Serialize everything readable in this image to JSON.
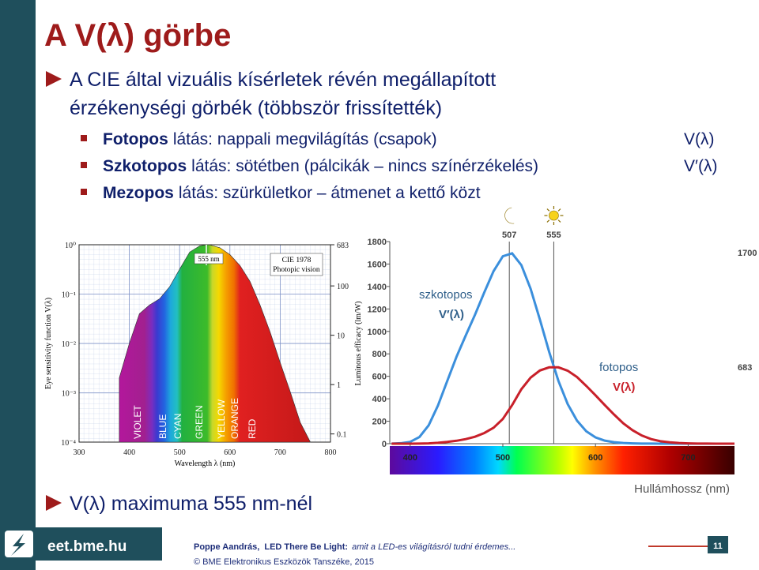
{
  "slide": {
    "title": "A V(λ) görbe",
    "bullet_lines": [
      "A CIE által vizuális kísérletek révén megállapított",
      "érzékenységi görbék (többször frissítették)"
    ],
    "subbullets": [
      {
        "term": "Fotopos",
        "text": "látás: nappali megvilágítás (csapok)",
        "symbol": "V(λ)"
      },
      {
        "term": "Szkotopos",
        "text": "látás: sötétben (pálcikák – nincs színérzékelés)",
        "symbol": "V′(λ)"
      },
      {
        "term": "Mezopos",
        "text": "látás: szürkületkor – átmenet a kettő közt"
      }
    ],
    "bottom_bullet": "V(λ) maximuma 555 nm-nél",
    "footer": {
      "site": "eet.bme.hu",
      "author": "Poppe Aandrás,",
      "course": "LED There Be Light:",
      "subtitle": "amit a LED-es világításról tudni érdemes...",
      "copyright": "© BME Elektronikus Eszközök Tanszéke, 2015",
      "page": "11"
    }
  },
  "chart_data": [
    {
      "type": "area",
      "x": [
        380,
        400,
        420,
        440,
        460,
        480,
        500,
        520,
        540,
        555,
        560,
        580,
        600,
        620,
        640,
        660,
        680,
        700,
        720,
        740,
        760
      ],
      "values": [
        0.002,
        0.01,
        0.04,
        0.06,
        0.08,
        0.14,
        0.32,
        0.71,
        0.95,
        1,
        0.99,
        0.87,
        0.63,
        0.38,
        0.18,
        0.06,
        0.017,
        0.0041,
        0.00105,
        0.00025,
        0.0001
      ],
      "xlim": [
        300,
        800
      ],
      "xticks": [
        300,
        400,
        500,
        600,
        700,
        800
      ],
      "ylim": [
        0.0001,
        1
      ],
      "log_y": true,
      "yticks": [
        {
          "value": 1,
          "label": "10⁰"
        },
        {
          "value": 0.1,
          "label": "10⁻¹"
        },
        {
          "value": 0.01,
          "label": "10⁻²"
        },
        {
          "value": 0.001,
          "label": "10⁻³"
        },
        {
          "value": 0.0001,
          "label": "10⁻⁴"
        }
      ],
      "y2lim": [
        0.0683,
        683
      ],
      "y2ticks": [
        683,
        100,
        10,
        1,
        0.1
      ],
      "xlabel": "Wavelength λ (nm)",
      "ylabel": "Eye sensitivity function V(λ)",
      "y2label": "Luminous efficacy (lm/W)",
      "grid": true,
      "peak_label": "555 nm",
      "note": [
        "CIE 1978",
        "Photopic vision"
      ],
      "bands": [
        "VIOLET",
        "BLUE",
        "CYAN",
        "GREEN",
        "YELLOW",
        "ORANGE",
        "RED"
      ]
    },
    {
      "type": "line",
      "x": [
        380,
        390,
        400,
        410,
        420,
        430,
        440,
        450,
        460,
        470,
        480,
        490,
        500,
        510,
        520,
        530,
        540,
        550,
        560,
        570,
        580,
        590,
        600,
        610,
        620,
        630,
        640,
        650,
        660,
        670,
        680,
        690,
        700,
        710,
        720,
        730,
        740,
        750
      ],
      "series": [
        {
          "name": "szkotopos",
          "label": "V′(λ)",
          "color": "#3b8fdc",
          "values": [
            1,
            4,
            16,
            59,
            164,
            340,
            558,
            774,
            964,
            1149,
            1348,
            1537,
            1669,
            1695,
            1590,
            1379,
            1105,
            818,
            559,
            353,
            206,
            111,
            56,
            27,
            13,
            6,
            3,
            1,
            1,
            0,
            0,
            0,
            0,
            0,
            0,
            0,
            0,
            0
          ]
        },
        {
          "name": "fotopos",
          "label": "V(λ)",
          "color": "#c8202a",
          "values": [
            0,
            0,
            0,
            1,
            3,
            8,
            16,
            26,
            41,
            62,
            95,
            142,
            220,
            343,
            485,
            588,
            652,
            680,
            680,
            650,
            594,
            515,
            431,
            344,
            260,
            181,
            120,
            73,
            41,
            22,
            12,
            6,
            3,
            1,
            1,
            0,
            0,
            0
          ]
        }
      ],
      "xlim": [
        378,
        750
      ],
      "xticks": [
        400,
        500,
        600,
        700
      ],
      "ylim": [
        0,
        1800
      ],
      "yticks": [
        0,
        200,
        400,
        600,
        800,
        1000,
        1200,
        1400,
        1600,
        1800
      ],
      "xlabel": "Hullámhossz (nm)",
      "markers": [
        507,
        555
      ],
      "peak_labels": [
        1700,
        683
      ]
    }
  ]
}
